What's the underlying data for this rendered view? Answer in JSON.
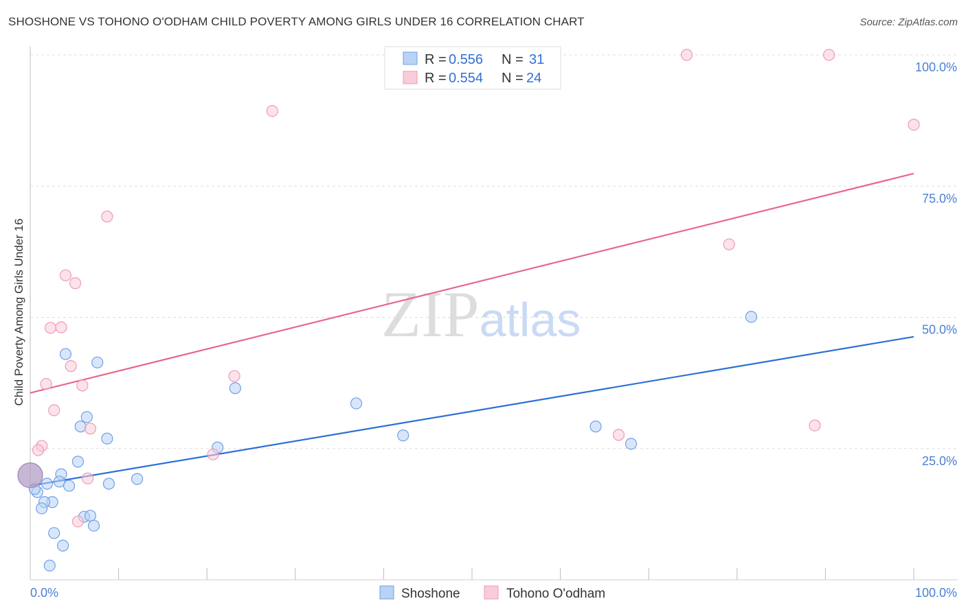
{
  "chart_data": {
    "type": "scatter",
    "title": "SHOSHONE VS TOHONO O'ODHAM CHILD POVERTY AMONG GIRLS UNDER 16 CORRELATION CHART",
    "source": "Source: ZipAtlas.com",
    "xlabel": "",
    "ylabel": "Child Poverty Among Girls Under 16",
    "xlim": [
      0,
      100
    ],
    "ylim": [
      0,
      100
    ],
    "x_tick_labels": [
      "0.0%",
      "100.0%"
    ],
    "y_ticks": [
      25,
      50,
      75,
      100
    ],
    "y_tick_labels": [
      "25.0%",
      "50.0%",
      "75.0%",
      "100.0%"
    ],
    "grid": true,
    "watermark": "ZIPatlas",
    "legend": {
      "placement": "top-center",
      "rows": [
        {
          "r_label": "R = ",
          "r": "0.556",
          "n_label": "N = ",
          "n": "31"
        },
        {
          "r_label": "R = ",
          "r": "0.554",
          "n_label": "N = ",
          "n": "24"
        }
      ]
    },
    "series": [
      {
        "name": "Shoshone",
        "color": "#6fa0e8",
        "fill": "#b9d2f5",
        "line_color": "#2a6fd6",
        "trend": [
          [
            0,
            17.9
          ],
          [
            100,
            46.3
          ]
        ],
        "points": [
          [
            4.0,
            43.0
          ],
          [
            7.6,
            41.4
          ],
          [
            23.2,
            36.5
          ],
          [
            36.9,
            33.6
          ],
          [
            6.4,
            31.0
          ],
          [
            5.7,
            29.2
          ],
          [
            8.7,
            26.9
          ],
          [
            42.2,
            27.5
          ],
          [
            64.0,
            29.2
          ],
          [
            68.0,
            25.9
          ],
          [
            21.2,
            25.2
          ],
          [
            5.4,
            22.5
          ],
          [
            3.5,
            20.1
          ],
          [
            3.3,
            18.7
          ],
          [
            1.9,
            18.3
          ],
          [
            4.4,
            17.9
          ],
          [
            8.9,
            18.3
          ],
          [
            12.1,
            19.2
          ],
          [
            0.8,
            16.7
          ],
          [
            0.5,
            17.3
          ],
          [
            2.5,
            14.8
          ],
          [
            1.6,
            14.8
          ],
          [
            1.3,
            13.6
          ],
          [
            6.1,
            12.0
          ],
          [
            6.8,
            12.2
          ],
          [
            7.2,
            10.3
          ],
          [
            2.7,
            8.9
          ],
          [
            3.7,
            6.5
          ],
          [
            2.2,
            2.7
          ],
          [
            81.6,
            50.1
          ],
          [
            0.0,
            19.9
          ]
        ]
      },
      {
        "name": "Tohono O'odham",
        "color": "#ee9ab5",
        "fill": "#f9ccd9",
        "line_color": "#e8668e",
        "trend": [
          [
            0,
            35.6
          ],
          [
            100,
            77.4
          ]
        ],
        "points": [
          [
            74.3,
            100
          ],
          [
            90.4,
            100
          ],
          [
            27.4,
            89.3
          ],
          [
            100,
            86.7
          ],
          [
            8.7,
            69.2
          ],
          [
            79.1,
            63.9
          ],
          [
            4.0,
            58.0
          ],
          [
            5.1,
            56.5
          ],
          [
            2.3,
            48.0
          ],
          [
            3.5,
            48.1
          ],
          [
            4.6,
            40.7
          ],
          [
            1.8,
            37.3
          ],
          [
            5.9,
            37.0
          ],
          [
            23.1,
            38.8
          ],
          [
            2.7,
            32.3
          ],
          [
            6.8,
            28.8
          ],
          [
            88.8,
            29.4
          ],
          [
            66.6,
            27.6
          ],
          [
            1.3,
            25.5
          ],
          [
            0.9,
            24.7
          ],
          [
            20.7,
            23.9
          ],
          [
            6.5,
            19.3
          ],
          [
            5.4,
            11.1
          ],
          [
            0.0,
            19.9
          ]
        ]
      }
    ]
  }
}
